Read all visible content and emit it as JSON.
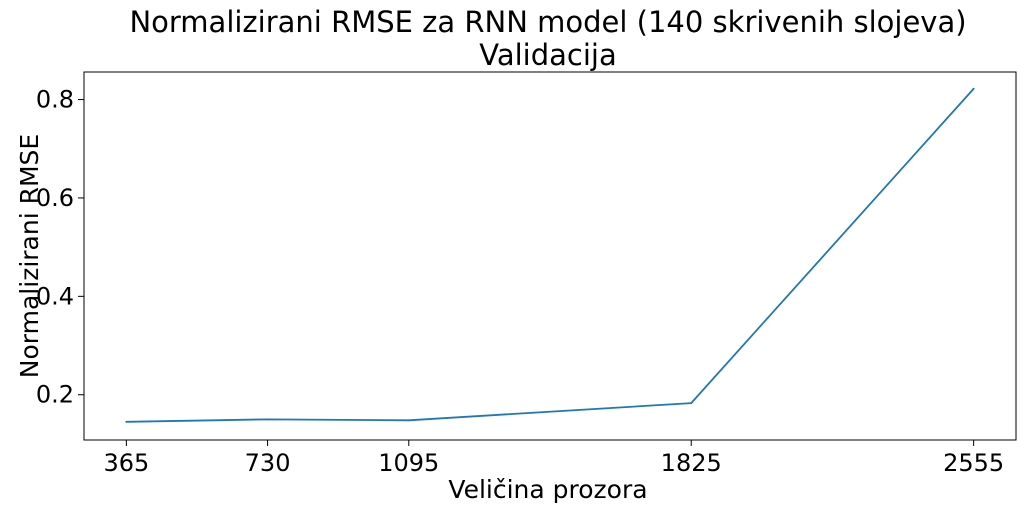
{
  "chart_data": {
    "type": "line",
    "title": "Normalizirani RMSE za RNN model (140 skrivenih slojeva)",
    "subtitle": "Validacija",
    "xlabel": "Veličina prozora",
    "ylabel": "Normalizirani RMSE",
    "x": [
      365,
      730,
      1095,
      1825,
      2555
    ],
    "xticks": [
      365,
      730,
      1095,
      1825,
      2555
    ],
    "xtick_labels": [
      "365",
      "730",
      "1095",
      "1825",
      "2555"
    ],
    "yticks": [
      0.2,
      0.4,
      0.6,
      0.8
    ],
    "ytick_labels": [
      "0.2",
      "0.4",
      "0.6",
      "0.8"
    ],
    "xlim": [
      255.5,
      2664.5
    ],
    "ylim": [
      0.108,
      0.856
    ],
    "grid": false,
    "legend": "none",
    "series": [
      {
        "values": [
          0.145,
          0.15,
          0.148,
          0.183,
          0.822
        ],
        "color": "#1f77b4"
      }
    ]
  }
}
